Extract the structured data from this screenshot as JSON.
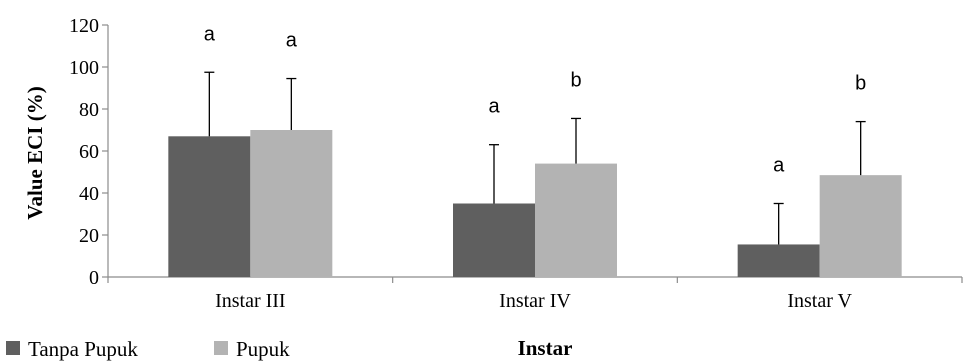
{
  "chart_data": {
    "type": "bar",
    "xlabel": "Instar",
    "ylabel": "Value  ECI (%)",
    "ylim": [
      0,
      120
    ],
    "yticks": [
      0,
      20,
      40,
      60,
      80,
      100,
      120
    ],
    "categories": [
      "Instar III",
      "Instar IV",
      "Instar V"
    ],
    "series": [
      {
        "name": "Tanpa Pupuk",
        "color": "#5f5f5f",
        "values": [
          67,
          35,
          15.5
        ],
        "error": [
          30.5,
          28,
          19.5
        ],
        "letters": [
          "a",
          "a",
          "a"
        ]
      },
      {
        "name": "Pupuk",
        "color": "#b3b3b3",
        "values": [
          70,
          54,
          48.5
        ],
        "error": [
          24.5,
          21.5,
          25.5
        ],
        "letters": [
          "a",
          "b",
          "b"
        ]
      }
    ],
    "legend": "bottom-left",
    "grid": false
  }
}
